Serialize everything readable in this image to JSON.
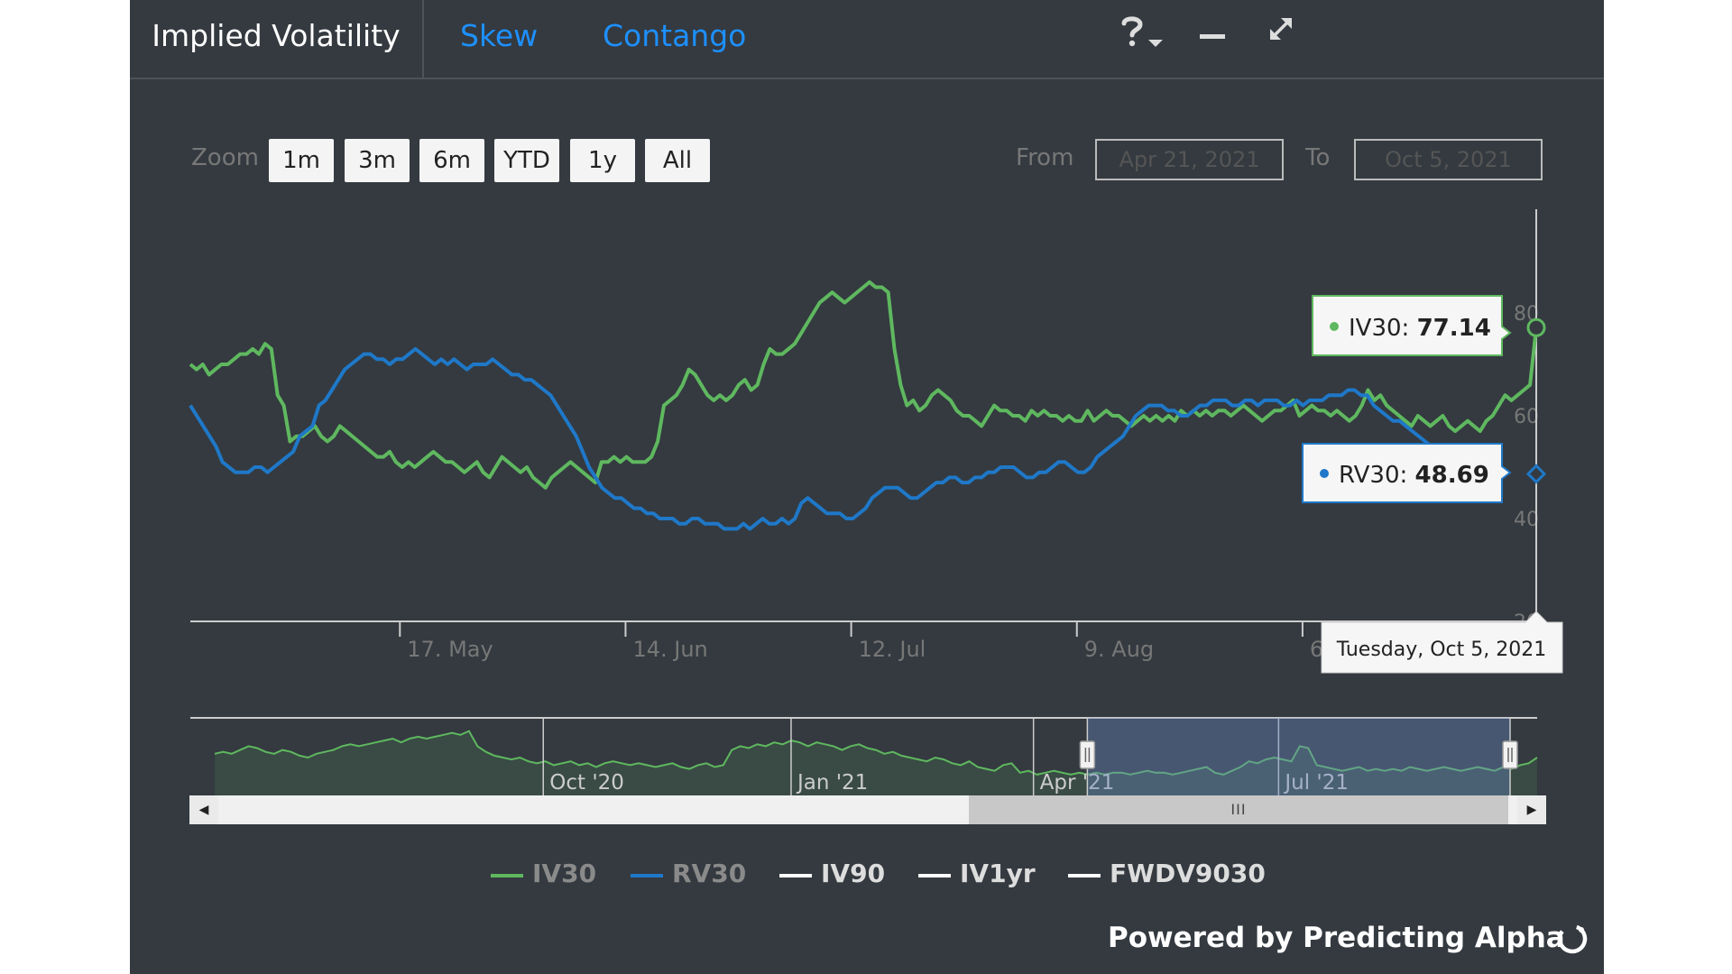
{
  "tabs": [
    {
      "label": "Implied Volatility",
      "active": true
    },
    {
      "label": "Skew"
    },
    {
      "label": "Contango"
    }
  ],
  "header_icons": [
    "help-icon",
    "chevron-down-icon",
    "minimize-icon",
    "expand-icon"
  ],
  "zoom": {
    "label": "Zoom",
    "buttons": [
      "1m",
      "3m",
      "6m",
      "YTD",
      "1y",
      "All"
    ]
  },
  "range": {
    "from_label": "From",
    "from_value": "Apr 21, 2021",
    "to_label": "To",
    "to_value": "Oct 5, 2021"
  },
  "chart_data": {
    "type": "line",
    "x_range": [
      "2021-04-21",
      "2021-10-05"
    ],
    "ylim": [
      20,
      100
    ],
    "y_ticks": [
      "20",
      "40",
      "60",
      "80"
    ],
    "x_ticks": [
      "17. May",
      "14. Jun",
      "12. Jul",
      "9. Aug",
      "6"
    ],
    "series": [
      {
        "name": "IV30",
        "color": "#5fb85f",
        "values": [
          70,
          69,
          70,
          68,
          69,
          70,
          70,
          71,
          72,
          72,
          73,
          72,
          74,
          73,
          64,
          62,
          55,
          56,
          56,
          57,
          58,
          56,
          55,
          56,
          58,
          57,
          56,
          55,
          54,
          53,
          52,
          52,
          53,
          51,
          50,
          51,
          50,
          51,
          52,
          53,
          52,
          51,
          51,
          50,
          49,
          50,
          51,
          49,
          48,
          50,
          52,
          51,
          50,
          49,
          50,
          48,
          47,
          46,
          48,
          49,
          50,
          51,
          50,
          49,
          48,
          47,
          51,
          51,
          52,
          51,
          52,
          51,
          51,
          51,
          52,
          55,
          62,
          63,
          64,
          66,
          69,
          68,
          66,
          64,
          63,
          64,
          63,
          64,
          66,
          67,
          65,
          66,
          70,
          73,
          72,
          72,
          73,
          74,
          76,
          78,
          80,
          82,
          83,
          84,
          83,
          82,
          83,
          84,
          85,
          86,
          85,
          85,
          84,
          73,
          66,
          62,
          63,
          61,
          62,
          64,
          65,
          64,
          63,
          61,
          60,
          60,
          59,
          58,
          60,
          62,
          61,
          61,
          60,
          60,
          59,
          61,
          60,
          61,
          60,
          60,
          59,
          60,
          59,
          59,
          61,
          59,
          60,
          61,
          60,
          60,
          59,
          58,
          59,
          60,
          59,
          60,
          59,
          60,
          59,
          61,
          60,
          61,
          60,
          61,
          60,
          61,
          61,
          60,
          61,
          62,
          61,
          60,
          59,
          60,
          61,
          61,
          62,
          63,
          60,
          61,
          62,
          61,
          61,
          60,
          61,
          60,
          59,
          60,
          62,
          65,
          63,
          64,
          62,
          61,
          60,
          59,
          58,
          60,
          59,
          58,
          59,
          60,
          58,
          57,
          58,
          59,
          58,
          57,
          59,
          60,
          62,
          64,
          63,
          64,
          65,
          66,
          77.14
        ]
      },
      {
        "name": "RV30",
        "color": "#1f78c8",
        "values": [
          62,
          60,
          58,
          56,
          54,
          51,
          50,
          49,
          49,
          49,
          50,
          50,
          49,
          50,
          51,
          52,
          53,
          56,
          57,
          58,
          62,
          63,
          65,
          67,
          69,
          70,
          71,
          72,
          72,
          71,
          71,
          70,
          71,
          71,
          72,
          73,
          72,
          71,
          70,
          71,
          70,
          71,
          70,
          69,
          70,
          70,
          70,
          71,
          70,
          69,
          68,
          68,
          67,
          67,
          66,
          65,
          64,
          62,
          60,
          58,
          56,
          53,
          50,
          48,
          46,
          45,
          44,
          44,
          43,
          42,
          42,
          41,
          41,
          40,
          40,
          40,
          39,
          39,
          40,
          40,
          39,
          39,
          39,
          38,
          38,
          38,
          39,
          38,
          39,
          40,
          39,
          39,
          40,
          39,
          40,
          43,
          44,
          43,
          42,
          41,
          41,
          41,
          40,
          40,
          41,
          42,
          44,
          45,
          46,
          46,
          46,
          45,
          44,
          44,
          45,
          46,
          47,
          47,
          48,
          48,
          47,
          47,
          48,
          48,
          49,
          49,
          50,
          50,
          50,
          49,
          48,
          48,
          49,
          49,
          50,
          51,
          51,
          50,
          49,
          49,
          50,
          52,
          53,
          54,
          55,
          56,
          58,
          60,
          61,
          62,
          62,
          62,
          61,
          61,
          60,
          60,
          61,
          62,
          62,
          63,
          63,
          63,
          62,
          62,
          63,
          63,
          62,
          63,
          63,
          63,
          62,
          62,
          63,
          62,
          63,
          63,
          63,
          64,
          64,
          64,
          65,
          65,
          64,
          64,
          62,
          61,
          60,
          59,
          59,
          58,
          57,
          56,
          55,
          54,
          53,
          53,
          52,
          52,
          52,
          51,
          50,
          49,
          49,
          48.69
        ]
      },
      {
        "name": "IV90",
        "color": "#ffffff",
        "values": []
      },
      {
        "name": "IV1yr",
        "color": "#ffffff",
        "values": []
      },
      {
        "name": "FWDV9030",
        "color": "#ffffff",
        "values": []
      }
    ],
    "tooltips": [
      {
        "label": "IV30",
        "sep": ": ",
        "value": "77.14"
      },
      {
        "label": "RV30",
        "sep": ": ",
        "value": "48.69"
      }
    ],
    "crosshair_date": "Tuesday, Oct 5, 2021",
    "navigator": {
      "x_range": [
        "2020-06",
        "2021-10-05"
      ],
      "labels": [
        "Oct '20",
        "Jan '21",
        "Apr '21",
        "Jul '21"
      ],
      "selected_range": [
        "2021-04-21",
        "2021-10-05"
      ],
      "values": [
        62,
        63,
        62,
        64,
        66,
        65,
        63,
        62,
        64,
        63,
        61,
        60,
        62,
        63,
        64,
        66,
        67,
        66,
        67,
        68,
        69,
        70,
        68,
        70,
        71,
        70,
        71,
        72,
        73,
        72,
        74,
        66,
        63,
        61,
        60,
        59,
        60,
        58,
        57,
        58,
        56,
        57,
        58,
        56,
        57,
        55,
        57,
        58,
        57,
        56,
        57,
        56,
        55,
        56,
        57,
        55,
        54,
        56,
        57,
        55,
        56,
        64,
        66,
        65,
        67,
        66,
        68,
        67,
        69,
        68,
        66,
        68,
        67,
        66,
        64,
        66,
        67,
        65,
        64,
        62,
        63,
        61,
        60,
        59,
        58,
        60,
        59,
        57,
        56,
        58,
        55,
        54,
        53,
        56,
        57,
        52,
        53,
        51,
        52,
        53,
        52,
        51,
        52,
        51,
        52,
        51,
        52,
        52,
        51,
        52,
        53,
        52,
        52,
        51,
        52,
        53,
        54,
        55,
        52,
        51,
        53,
        55,
        58,
        57,
        59,
        60,
        59,
        58,
        66,
        65,
        56,
        55,
        54,
        53,
        54,
        55,
        53,
        54,
        53,
        54,
        53,
        55,
        54,
        53,
        54,
        55,
        54,
        53,
        54,
        55,
        54,
        53,
        55,
        54,
        56,
        57,
        60
      ]
    }
  },
  "legend": [
    {
      "label": "IV30",
      "color": "#5fb85f"
    },
    {
      "label": "RV30",
      "color": "#1f78c8"
    },
    {
      "label": "IV90",
      "color": "#ffffff"
    },
    {
      "label": "IV1yr",
      "color": "#ffffff"
    },
    {
      "label": "FWDV9030",
      "color": "#ffffff"
    }
  ],
  "scrollbar": {
    "grip": "III"
  },
  "footer": {
    "powered_by": "Powered by Predicting Alpha"
  }
}
